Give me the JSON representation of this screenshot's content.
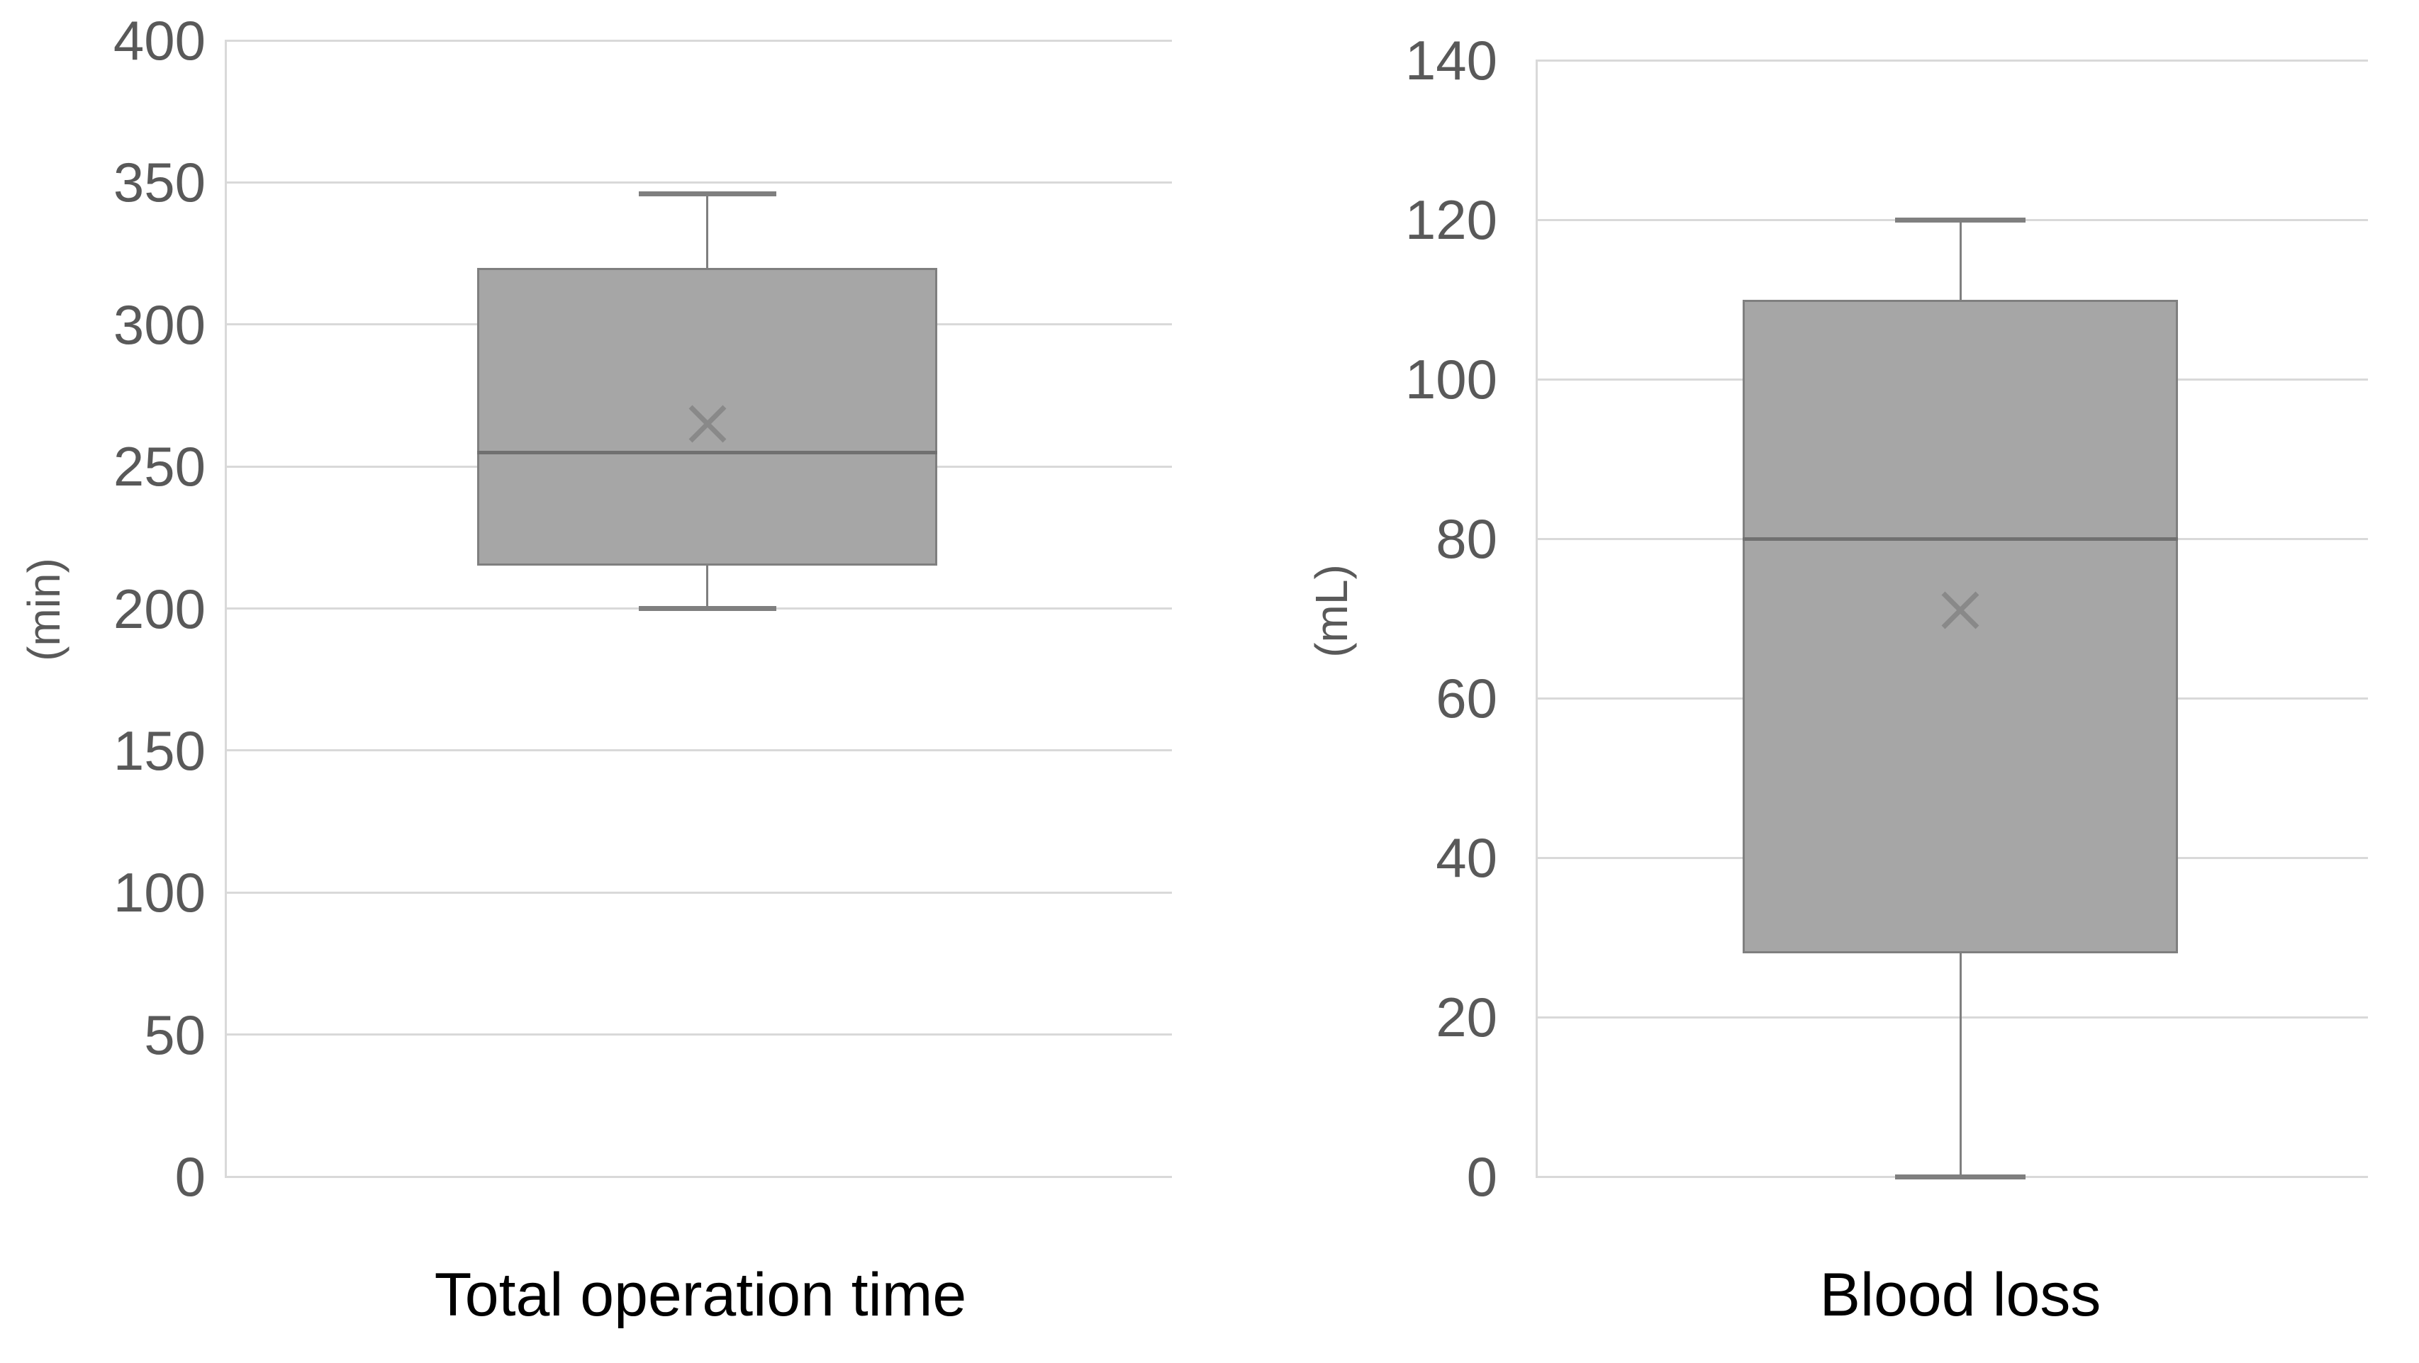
{
  "page": {
    "background": "#ffffff"
  },
  "colors": {
    "background": "#ffffff",
    "gridline": "#d9d9d9",
    "tick_text": "#595959",
    "unit_text": "#595959",
    "title_text": "#000000",
    "box_fill": "#a6a6a6",
    "box_border": "#7f7f7f",
    "median_line": "#707070",
    "whisker": "#7f7f7f",
    "mean_marker": "#898989"
  },
  "chart_data": [
    {
      "type": "boxplot",
      "title": "Total operation time",
      "ylabel": "(min)",
      "ylim": [
        0,
        400
      ],
      "ytick_step": 50,
      "yticks": [
        "400",
        "350",
        "300",
        "250",
        "200",
        "150",
        "100",
        "50",
        "0"
      ],
      "grid": true,
      "legend": "none",
      "series": [
        {
          "name": "Total operation time",
          "min": 200,
          "q1": 215,
          "median": 255,
          "q3": 320,
          "max": 346,
          "mean": 265
        }
      ]
    },
    {
      "type": "boxplot",
      "title": "Blood loss",
      "ylabel": "(mL)",
      "ylim": [
        0,
        140
      ],
      "ytick_step": 20,
      "yticks": [
        "140",
        "120",
        "100",
        "80",
        "60",
        "40",
        "20",
        "0"
      ],
      "grid": true,
      "legend": "none",
      "series": [
        {
          "name": "Blood loss",
          "min": 0,
          "q1": 28,
          "median": 80,
          "q3": 110,
          "max": 120,
          "mean": 71
        }
      ]
    }
  ]
}
